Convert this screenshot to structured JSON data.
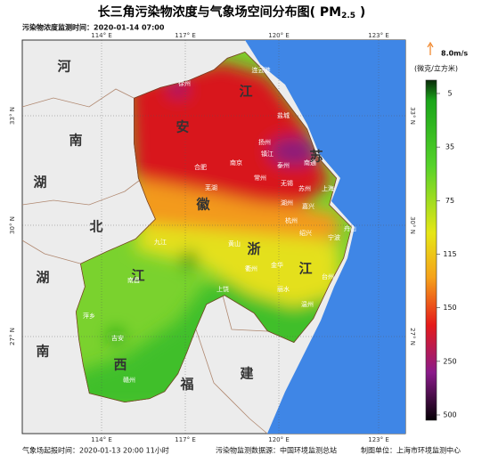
{
  "header": {
    "title": "长三角污染物浓度与气象场空间分布图( PM",
    "title_sub": "2.5",
    "title_end": " )",
    "monitor_time": "污染物浓度监测时间：2020-01-14 07:00"
  },
  "map": {
    "lon_labels": [
      "114° E",
      "117° E",
      "120° E",
      "123° E"
    ],
    "lat_labels": [
      "33° N",
      "30° N",
      "27° N"
    ],
    "provinces": [
      "河",
      "南",
      "湖",
      "北",
      "湖",
      "南",
      "安",
      "江",
      "苏",
      "徽",
      "浙",
      "江",
      "江",
      "西",
      "福",
      "建"
    ],
    "cities": [
      "连云港",
      "徐州",
      "盐城",
      "扬州",
      "镇江",
      "南京",
      "泰州",
      "南通",
      "合肥",
      "常州",
      "无锡",
      "苏州",
      "上海",
      "芜湖",
      "湖州",
      "嘉兴",
      "杭州",
      "绍兴",
      "宁波",
      "舟山",
      "黄山",
      "衢州",
      "金华",
      "丽水",
      "温州",
      "台州",
      "上饶",
      "九江",
      "南昌",
      "萍乡",
      "吉安",
      "赣州"
    ]
  },
  "legend": {
    "wind": "8.0m/s",
    "unit": "(微克/立方米)",
    "levels": [
      5,
      35,
      75,
      115,
      150,
      250,
      500
    ]
  },
  "footer": {
    "forecast_time": "气象场起报时间：2020-01-13 20:00 11小时",
    "source": "污染物监测数据源：中国环境监测总站",
    "maker": "制图单位：上海市环境监测中心"
  }
}
